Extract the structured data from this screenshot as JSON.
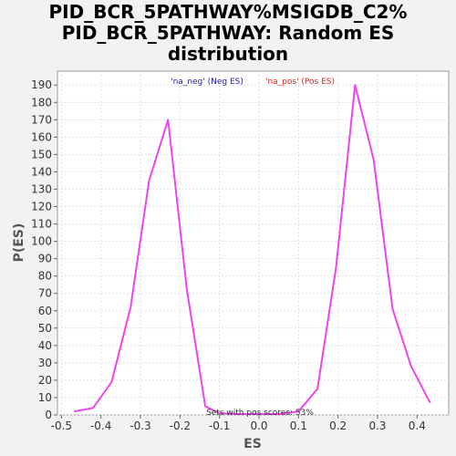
{
  "chart_data": {
    "type": "line",
    "title_lines": [
      "PID_BCR_5PATHWAY%MSIGDB_C2%",
      "PID_BCR_5PATHWAY: Random ES",
      "distribution"
    ],
    "xlabel": "ES",
    "ylabel": "P(ES)",
    "xlim": [
      -0.51,
      0.48
    ],
    "ylim": [
      0,
      198
    ],
    "xticks": [
      -0.5,
      -0.4,
      -0.3,
      -0.2,
      -0.1,
      0.0,
      0.1,
      0.2,
      0.3,
      0.4
    ],
    "xtick_labels": [
      "-0.5",
      "-0.4",
      "-0.3",
      "-0.2",
      "-0.1",
      "0.0",
      "0.1",
      "0.2",
      "0.3",
      "0.4"
    ],
    "yticks": [
      0,
      10,
      20,
      30,
      40,
      50,
      60,
      70,
      80,
      90,
      100,
      110,
      120,
      130,
      140,
      150,
      160,
      170,
      180,
      190
    ],
    "ytick_labels": [
      "0",
      "10",
      "20",
      "30",
      "40",
      "50",
      "60",
      "70",
      "80",
      "90",
      "100",
      "110",
      "120",
      "130",
      "140",
      "150",
      "160",
      "170",
      "180",
      "190"
    ],
    "grid": true,
    "legend": [
      {
        "label": "'na_neg' (Neg ES)",
        "color": "#2222aa"
      },
      {
        "label": "'na_pos' (Pos ES)",
        "color": "#dd2222"
      }
    ],
    "annotation": "Sets with pos scores: 53%",
    "line_color": "#ee44ee",
    "series": [
      {
        "x": [
          -0.468,
          -0.42,
          -0.373,
          -0.325,
          -0.278,
          -0.23,
          -0.183,
          -0.136,
          -0.1,
          -0.05,
          0.0,
          0.05,
          0.1,
          0.148,
          0.195,
          0.243,
          0.29,
          0.338,
          0.385,
          0.433
        ],
        "y": [
          2,
          4,
          19,
          62,
          135,
          170,
          73,
          5,
          1,
          0.5,
          0.5,
          0.5,
          2,
          15,
          85,
          190,
          147,
          61,
          28,
          7
        ]
      }
    ]
  }
}
